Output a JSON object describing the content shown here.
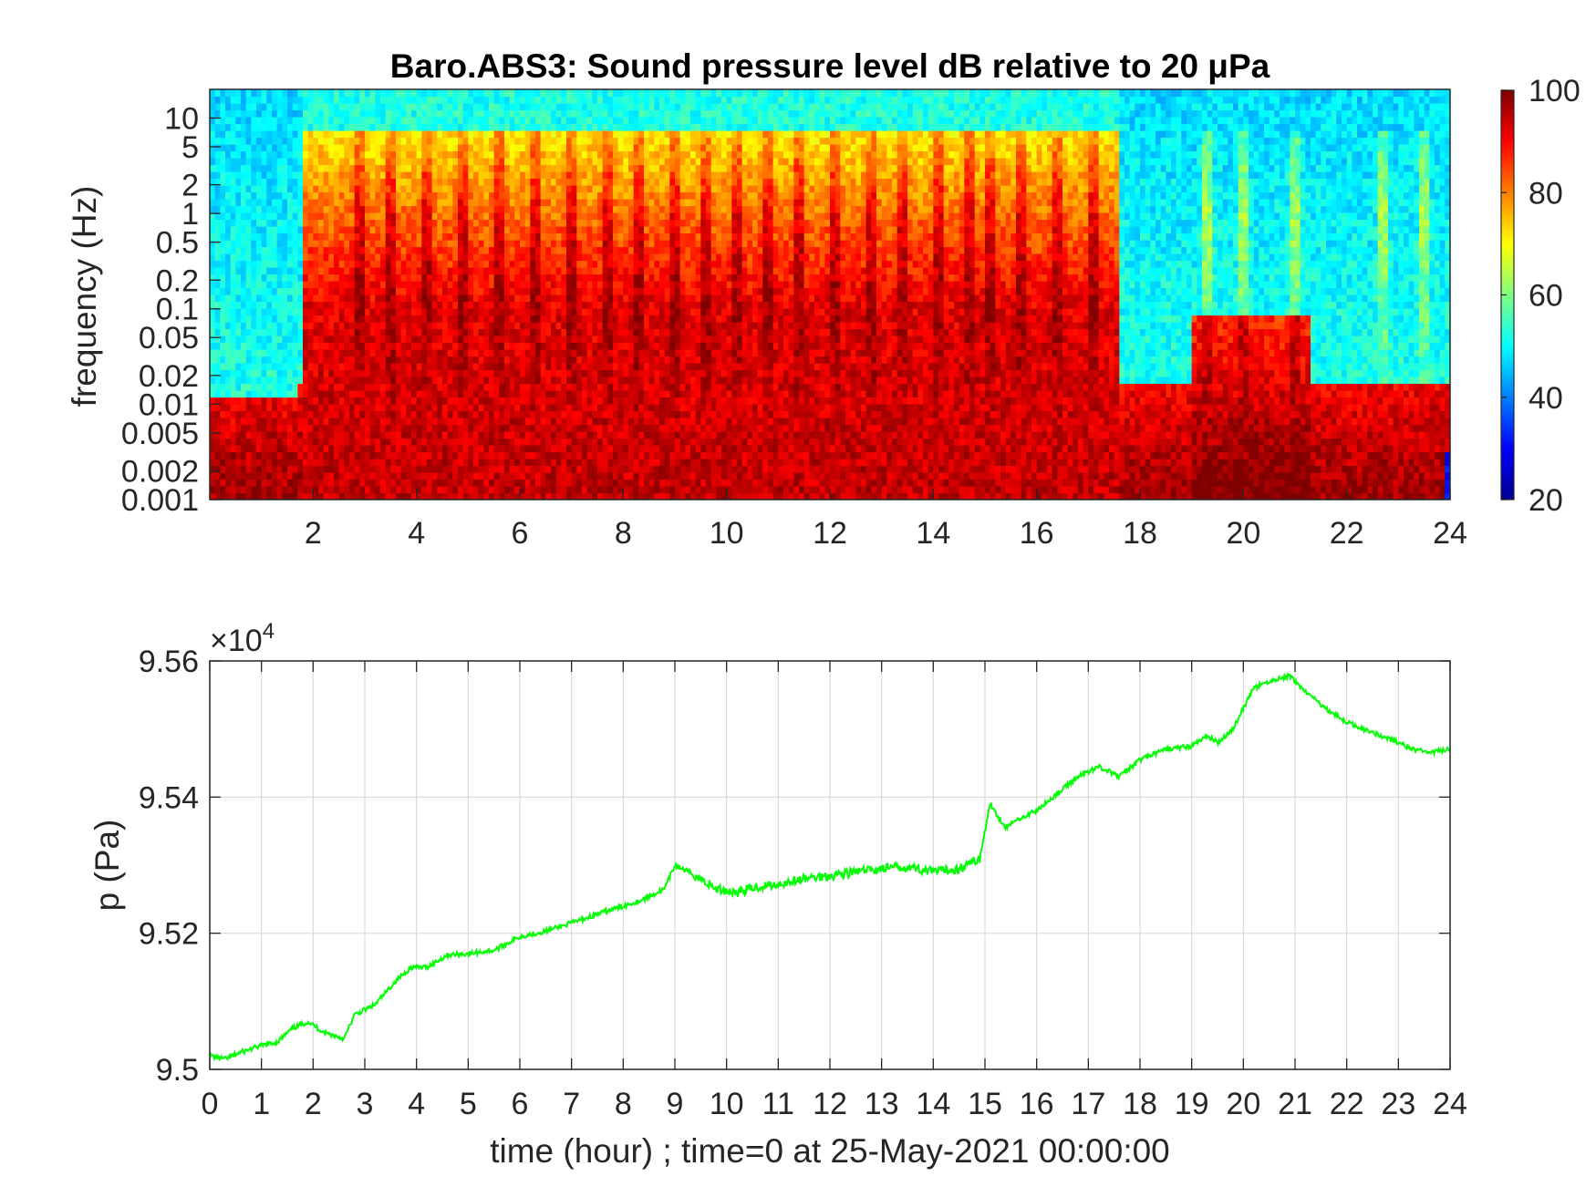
{
  "chart_data": [
    {
      "type": "heatmap",
      "title": "Baro.ABS3: Sound pressure level dB relative to 20 μPa",
      "ylabel": "frequency (Hz)",
      "yscale": "log",
      "xlim": [
        0,
        24
      ],
      "ylim": [
        0.001,
        20
      ],
      "xticks": [
        "2",
        "4",
        "6",
        "8",
        "10",
        "12",
        "14",
        "16",
        "18",
        "20",
        "22",
        "24"
      ],
      "yticks": [
        "0.001",
        "0.002",
        "0.005",
        "0.01",
        "0.02",
        "0.05",
        "0.1",
        "0.2",
        "0.5",
        "1",
        "2",
        "5",
        "10"
      ],
      "colormap": "jet",
      "colorbar": {
        "min": 20,
        "max": 100,
        "ticks": [
          "20",
          "40",
          "60",
          "80",
          "100"
        ]
      },
      "description_level_by_time": [
        {
          "x": [
            0.0,
            1.7
          ],
          "level": "quiet: ~50 dB above 0.02 Hz, ~90-100 dB below 0.01 Hz"
        },
        {
          "x": [
            1.7,
            17.5
          ],
          "level": "loud: ~85-100 dB below 0.1 Hz, ~65-80 dB up to 10 Hz"
        },
        {
          "x": [
            17.5,
            24.0
          ],
          "level": "mixed: ~85-100 dB below 0.01 Hz, ~55 dB above 0.1 Hz, bursts near 19.3, 20, 21"
        }
      ]
    },
    {
      "type": "line",
      "xlabel": "time (hour) ; time=0 at 25-May-2021 00:00:00",
      "ylabel": "p (Pa)",
      "xlim": [
        0,
        24
      ],
      "ylim": [
        95000,
        95600
      ],
      "exponent_label": "×10",
      "exponent_power": "4",
      "xticks": [
        "0",
        "1",
        "2",
        "3",
        "4",
        "5",
        "6",
        "7",
        "8",
        "9",
        "10",
        "11",
        "12",
        "13",
        "14",
        "15",
        "16",
        "17",
        "18",
        "19",
        "20",
        "21",
        "22",
        "23",
        "24"
      ],
      "yticks": [
        "9.5",
        "9.52",
        "9.54",
        "9.56"
      ],
      "grid": true,
      "series": [
        {
          "color": "#00ff00",
          "x": [
            0,
            0.3,
            0.6,
            1.0,
            1.3,
            1.6,
            1.9,
            2.2,
            2.6,
            2.8,
            3.2,
            3.6,
            3.9,
            4.2,
            4.6,
            5.0,
            5.5,
            6.0,
            6.5,
            7.0,
            7.5,
            8.0,
            8.4,
            8.8,
            9.0,
            9.4,
            9.8,
            10.2,
            10.6,
            11.0,
            11.5,
            12.0,
            12.5,
            13.0,
            13.5,
            14.0,
            14.5,
            14.9,
            15.1,
            15.4,
            15.7,
            16.0,
            16.4,
            16.8,
            17.2,
            17.6,
            18.0,
            18.5,
            19.0,
            19.3,
            19.5,
            19.8,
            20.2,
            20.5,
            20.9,
            21.2,
            21.6,
            22.0,
            22.5,
            23.0,
            23.3,
            23.6,
            24.0
          ],
          "y": [
            95020,
            95015,
            95025,
            95035,
            95040,
            95060,
            95070,
            95055,
            95045,
            95080,
            95095,
            95130,
            95150,
            95150,
            95168,
            95170,
            95175,
            95195,
            95203,
            95215,
            95228,
            95240,
            95250,
            95265,
            95300,
            95285,
            95265,
            95260,
            95268,
            95272,
            95280,
            95285,
            95290,
            95295,
            95298,
            95290,
            95295,
            95310,
            95390,
            95355,
            95370,
            95380,
            95405,
            95430,
            95445,
            95430,
            95455,
            95470,
            95475,
            95490,
            95480,
            95500,
            95560,
            95570,
            95578,
            95555,
            95530,
            95510,
            95495,
            95480,
            95470,
            95465,
            95470
          ]
        }
      ]
    }
  ]
}
